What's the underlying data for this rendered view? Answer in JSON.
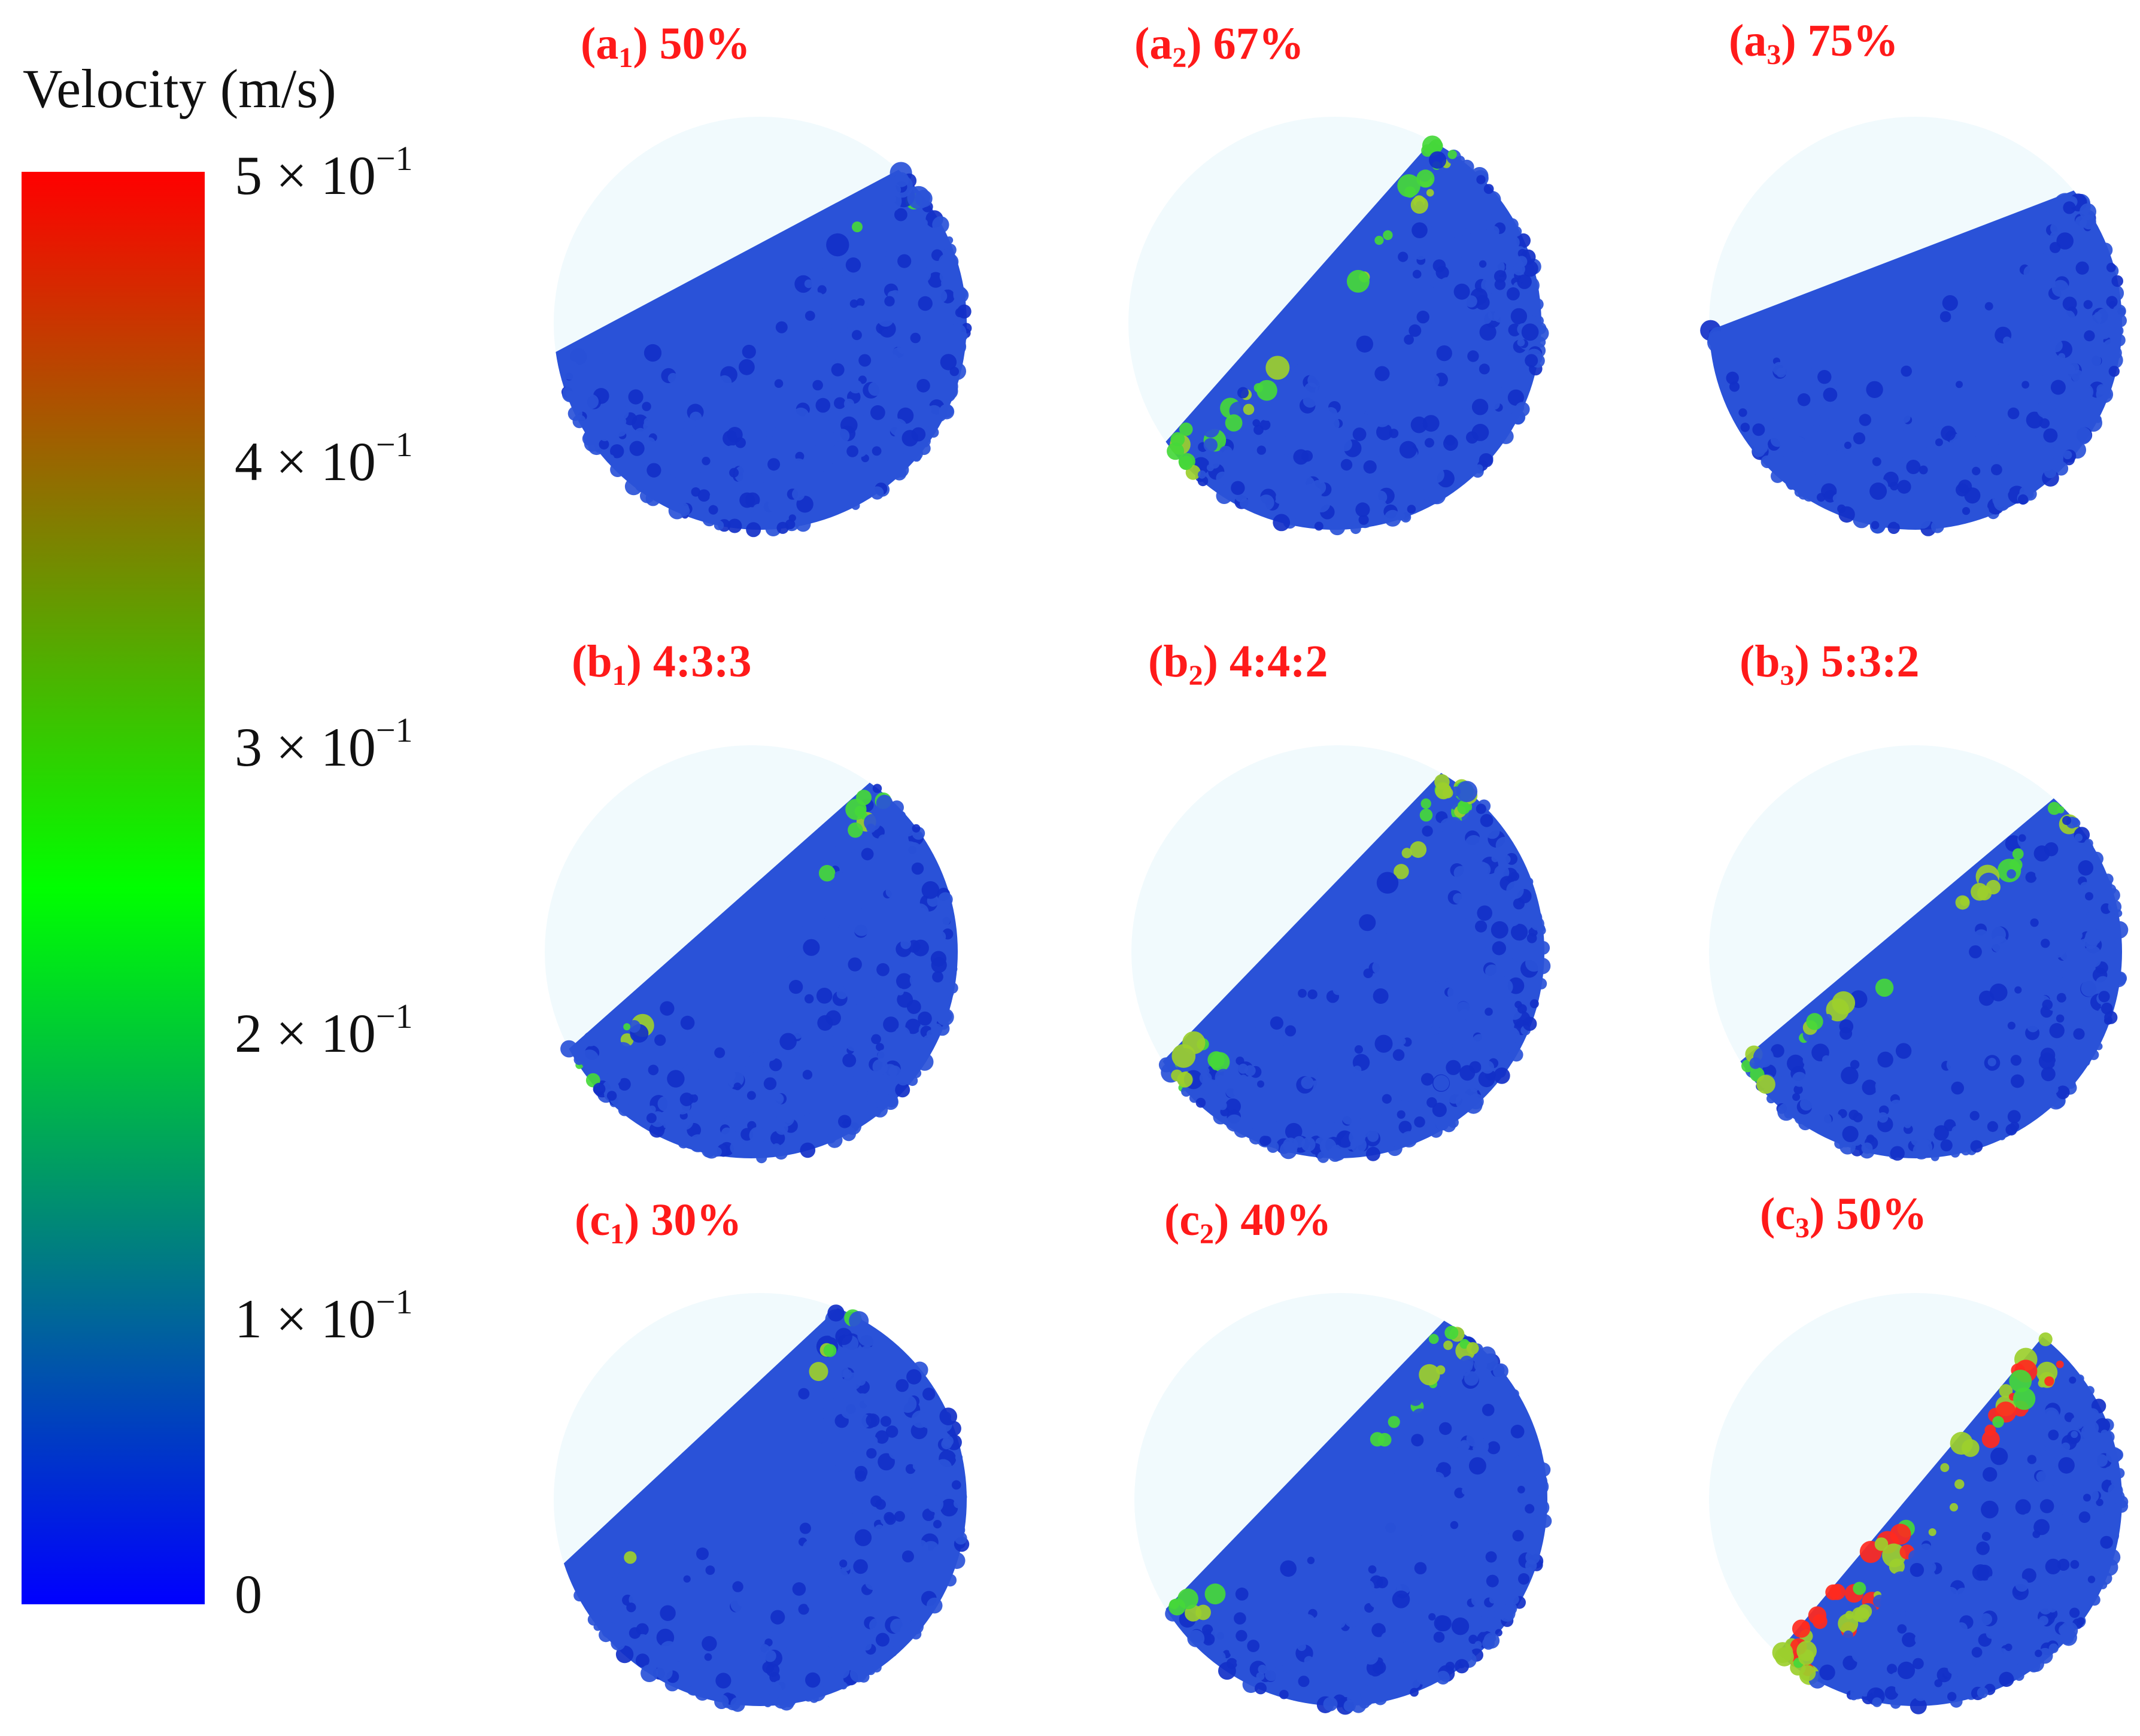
{
  "legend": {
    "title": "Velocity (m/s)",
    "colors": {
      "max": "#ff0000",
      "mid": "#00ff00",
      "min": "#0000ff"
    },
    "ticks": [
      {
        "mantissa": "5 × 10",
        "exponent": "−1"
      },
      {
        "mantissa": "4 × 10",
        "exponent": "−1"
      },
      {
        "mantissa": "3 × 10",
        "exponent": "−1"
      },
      {
        "mantissa": "2 × 10",
        "exponent": "−1"
      },
      {
        "mantissa": "1 × 10",
        "exponent": "−1"
      },
      {
        "mantissa": "0",
        "exponent": ""
      }
    ]
  },
  "panels": [
    {
      "letter": "a",
      "index": "1",
      "caption": "50%"
    },
    {
      "letter": "a",
      "index": "2",
      "caption": "67%"
    },
    {
      "letter": "a",
      "index": "3",
      "caption": "75%"
    },
    {
      "letter": "b",
      "index": "1",
      "caption": "4:3:3"
    },
    {
      "letter": "b",
      "index": "2",
      "caption": "4:4:2"
    },
    {
      "letter": "b",
      "index": "3",
      "caption": "5:3:2"
    },
    {
      "letter": "c",
      "index": "1",
      "caption": "30%"
    },
    {
      "letter": "c",
      "index": "2",
      "caption": "40%"
    },
    {
      "letter": "c",
      "index": "3",
      "caption": "50%"
    }
  ],
  "colors": {
    "label": "#ff1a1a",
    "drum": "#f1fafd",
    "bed": "#2a52d8",
    "bed_dark": "#1230c8",
    "fast_green": "#45d83a",
    "fast_olive": "#9ccf2c",
    "fast_red": "#ff2a1e"
  }
}
